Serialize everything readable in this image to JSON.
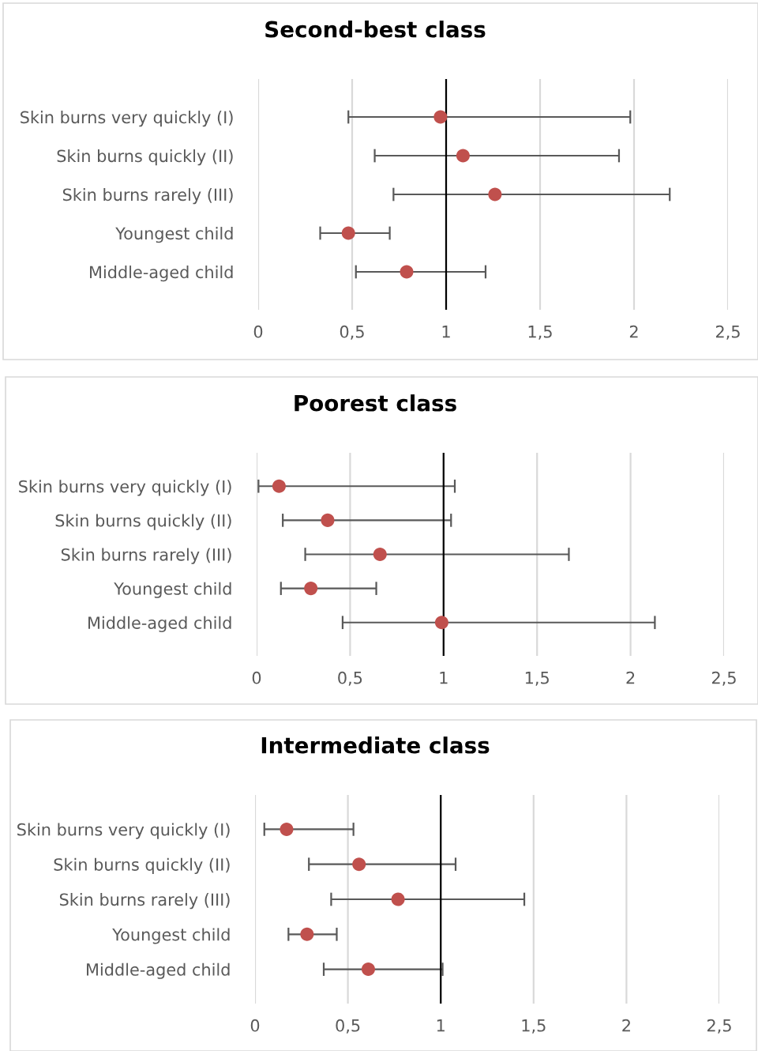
{
  "chart_data": [
    {
      "type": "scatter",
      "orientation": "horizontal",
      "title": "Second-best class",
      "categories": [
        "Skin burns very quickly (I)",
        "Skin burns quickly (II)",
        "Skin burns rarely (III)",
        "Youngest child",
        "Middle-aged child"
      ],
      "color": "#c0504d",
      "marker": "circle",
      "grid": "x",
      "values": [
        0.97,
        1.09,
        1.26,
        0.48,
        0.79
      ],
      "errors": [
        [
          0.48,
          1.98
        ],
        [
          0.62,
          1.92
        ],
        [
          0.72,
          2.19
        ],
        [
          0.33,
          0.7
        ],
        [
          0.52,
          1.21
        ]
      ],
      "xlim": [
        0,
        2.5
      ],
      "xticks": [
        0,
        {
          "value": 0.5,
          "label": "0,5"
        },
        1,
        {
          "value": 1.5,
          "label": "1,5"
        },
        2,
        {
          "value": 2.5,
          "label": "2,5"
        }
      ],
      "ref_lines": [
        {
          "axis": "x",
          "value": 1,
          "color": "#000000"
        }
      ]
    },
    {
      "type": "scatter",
      "orientation": "horizontal",
      "title": "Poorest class",
      "categories": [
        "Skin burns very quickly (I)",
        "Skin burns quickly (II)",
        "Skin burns rarely (III)",
        "Youngest child",
        "Middle-aged child"
      ],
      "color": "#c0504d",
      "marker": "circle",
      "grid": "x",
      "values": [
        0.12,
        0.38,
        0.66,
        0.29,
        0.99
      ],
      "errors": [
        [
          0.01,
          1.06
        ],
        [
          0.14,
          1.04
        ],
        [
          0.26,
          1.67
        ],
        [
          0.13,
          0.64
        ],
        [
          0.46,
          2.13
        ]
      ],
      "xlim": [
        0,
        2.5
      ],
      "xticks": [
        0,
        {
          "value": 0.5,
          "label": "0,5"
        },
        1,
        {
          "value": 1.5,
          "label": "1,5"
        },
        2,
        {
          "value": 2.5,
          "label": "2,5"
        }
      ],
      "ref_lines": [
        {
          "axis": "x",
          "value": 1,
          "color": "#000000"
        }
      ]
    },
    {
      "type": "scatter",
      "orientation": "horizontal",
      "title": "Intermediate class",
      "categories": [
        "Skin burns very quickly (I)",
        "Skin burns quickly (II)",
        "Skin burns rarely (III)",
        "Youngest child",
        "Middle-aged child"
      ],
      "color": "#c0504d",
      "marker": "circle",
      "grid": "x",
      "values": [
        0.17,
        0.56,
        0.77,
        0.28,
        0.61
      ],
      "errors": [
        [
          0.05,
          0.53
        ],
        [
          0.29,
          1.08
        ],
        [
          0.41,
          1.45
        ],
        [
          0.18,
          0.44
        ],
        [
          0.37,
          1.01
        ]
      ],
      "xlim": [
        0,
        2.5
      ],
      "xticks": [
        0,
        {
          "value": 0.5,
          "label": "0,5"
        },
        1,
        {
          "value": 1.5,
          "label": "1,5"
        },
        2,
        {
          "value": 2.5,
          "label": "2,5"
        }
      ],
      "ref_lines": [
        {
          "axis": "x",
          "value": 1,
          "color": "#000000"
        }
      ]
    }
  ]
}
